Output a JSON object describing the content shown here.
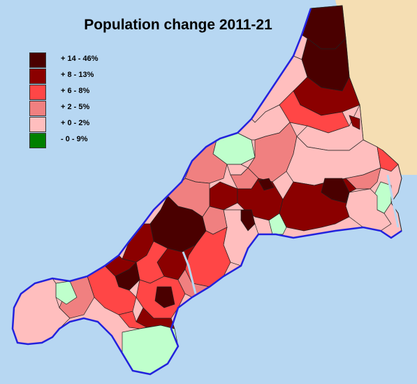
{
  "map": {
    "title": "Population change 2011-21",
    "sea_color": "#b7d7f2",
    "neighbour_land_color": "#f5deb3",
    "coastline_color": "#2222dd",
    "border_color": "#222222",
    "legend": [
      {
        "label": "+ 14 - 46%",
        "color": "#4a0000"
      },
      {
        "label": "+ 8 - 13%",
        "color": "#8b0000"
      },
      {
        "label": "+ 6 - 8%",
        "color": "#ff4646"
      },
      {
        "label": "+ 2 - 5%",
        "color": "#f08080"
      },
      {
        "label": "+ 0 - 2%",
        "color": "#ffbebe"
      },
      {
        "label": "- 0 - 9%",
        "color": "#008000"
      }
    ],
    "negative_change_fill": "#bfffcc"
  }
}
